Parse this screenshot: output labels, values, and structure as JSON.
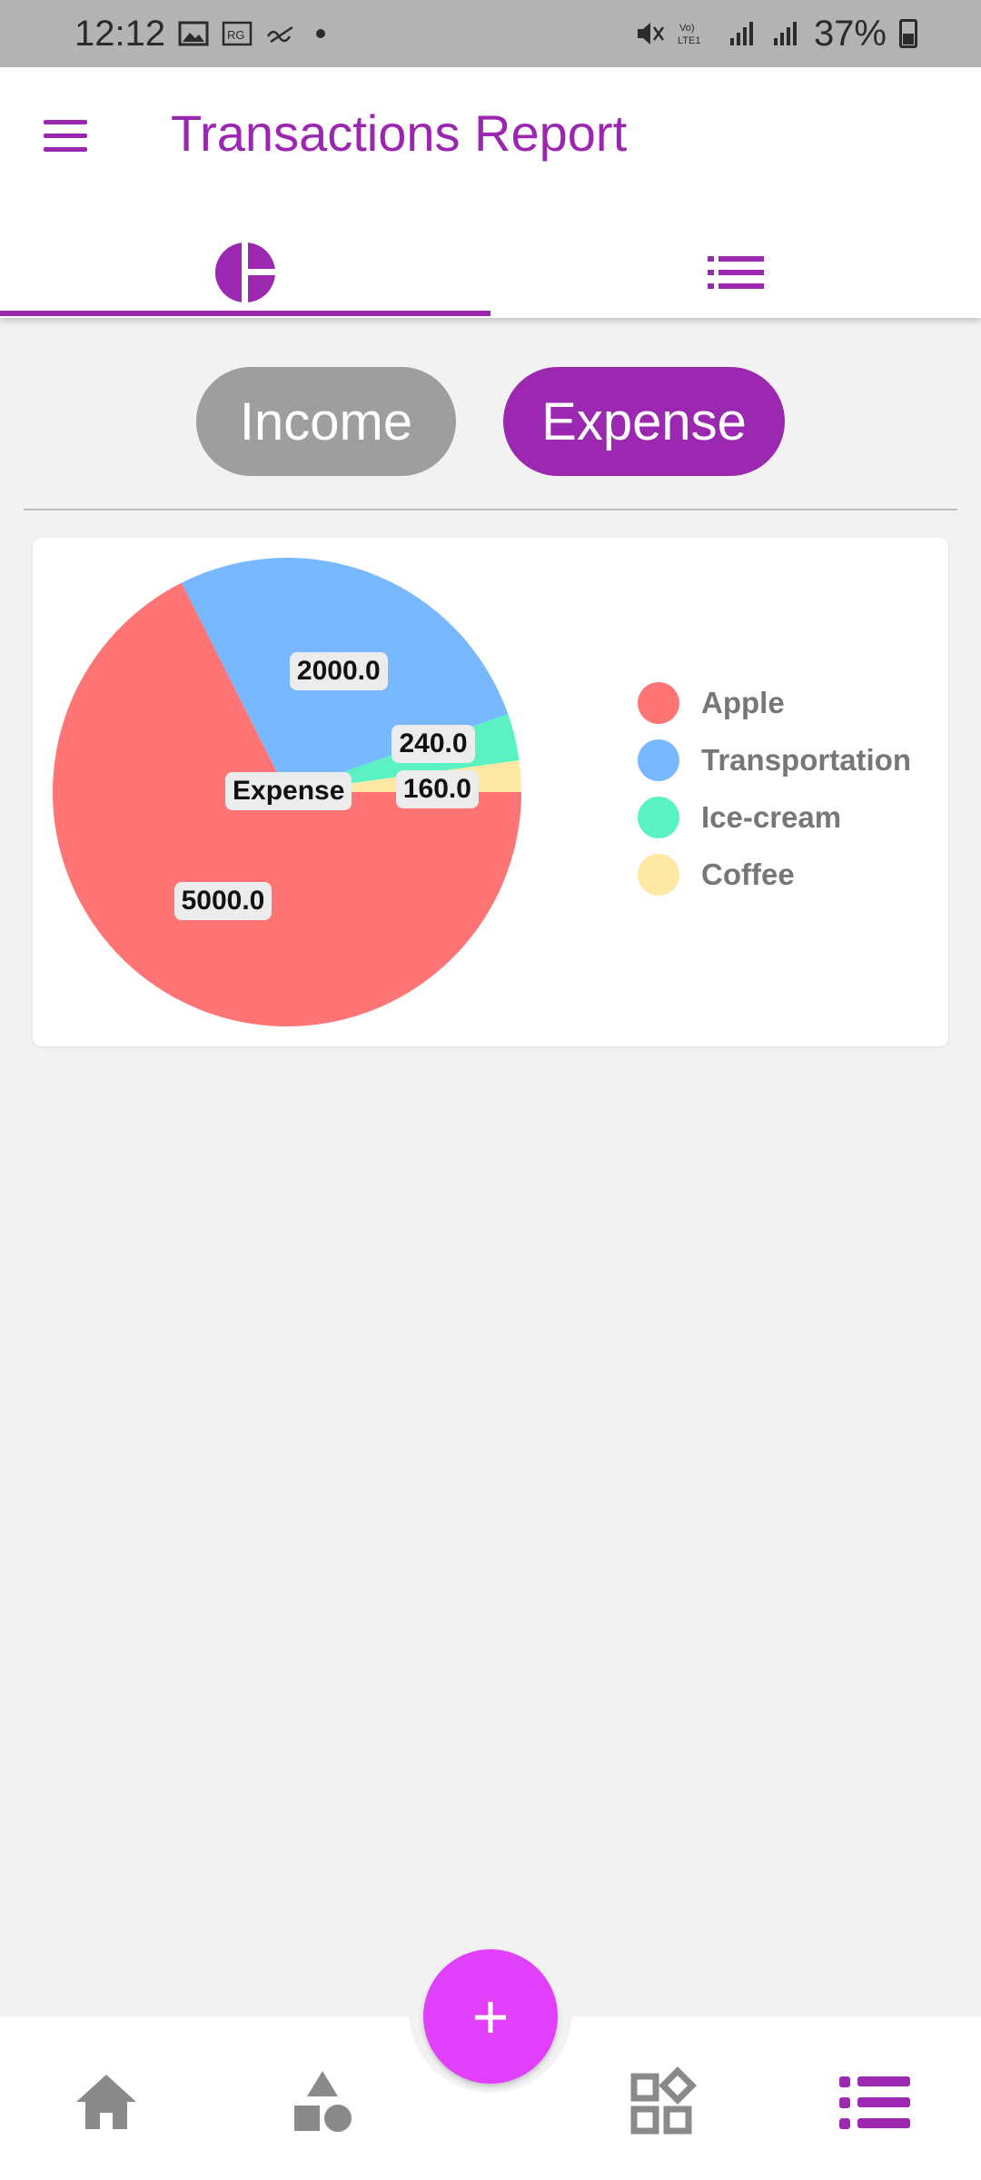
{
  "status_bar": {
    "time": "12:12",
    "battery": "37%",
    "network": "LTE1",
    "icons": [
      "image-icon",
      "sim-icon",
      "wifi-calling-icon",
      "dot-icon",
      "mute-icon",
      "volte-icon",
      "signal-icon",
      "signal-icon",
      "battery-icon"
    ]
  },
  "header": {
    "title": "Transactions Report",
    "menu_icon": "menu-icon"
  },
  "tabs": [
    {
      "name": "chart",
      "icon": "pie-chart-icon",
      "selected": true
    },
    {
      "name": "list",
      "icon": "list-icon",
      "selected": false
    }
  ],
  "toggle": {
    "income_label": "Income",
    "expense_label": "Expense",
    "selected": "Expense"
  },
  "chart_data": {
    "type": "pie",
    "center_label": "Expense",
    "slices": [
      {
        "label": "Apple",
        "value": 5000.0,
        "display": "5000.0",
        "color": "#ff7575"
      },
      {
        "label": "Transportation",
        "value": 2000.0,
        "display": "2000.0",
        "color": "#78b8ff"
      },
      {
        "label": "Ice-cream",
        "value": 240.0,
        "display": "240.0",
        "color": "#5af2c2"
      },
      {
        "label": "Coffee",
        "value": 160.0,
        "display": "160.0",
        "color": "#ffe8a3"
      }
    ],
    "legend_position": "right"
  },
  "bottom_nav": {
    "items": [
      {
        "name": "home",
        "icon": "home-icon"
      },
      {
        "name": "categories",
        "icon": "shapes-icon"
      },
      {
        "name": "widgets",
        "icon": "widgets-icon"
      },
      {
        "name": "reports",
        "icon": "list-icon",
        "selected": true
      }
    ],
    "fab_label": "+"
  },
  "colors": {
    "primary": "#9c27b0",
    "fab": "#e040fb",
    "inactive": "#9e9e9e"
  }
}
